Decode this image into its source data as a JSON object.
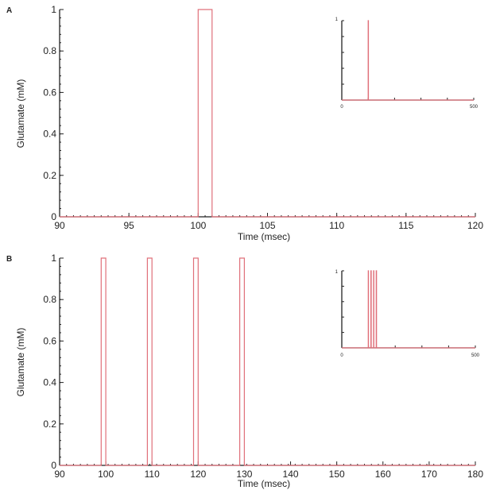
{
  "figure": {
    "panels": [
      {
        "label": "A",
        "xlabel": "Time (msec)",
        "ylabel": "Glutamate (mM)",
        "inset": {
          "x_ticks": [
            "0",
            "500"
          ],
          "y_ticks": [
            "1"
          ]
        }
      },
      {
        "label": "B",
        "xlabel": "Time (msec)",
        "ylabel": "Glutamate (mM)",
        "inset": {
          "x_ticks": [
            "0",
            "500"
          ],
          "y_ticks": [
            "1"
          ]
        }
      }
    ]
  },
  "chart_data": [
    {
      "type": "line",
      "panel": "A",
      "title": "",
      "xlabel": "Time (msec)",
      "ylabel": "Glutamate (mM)",
      "xlim": [
        90,
        120
      ],
      "ylim": [
        0,
        1
      ],
      "x_ticks": [
        90,
        95,
        100,
        105,
        110,
        115,
        120
      ],
      "y_ticks": [
        0,
        0.2,
        0.4,
        0.6,
        0.8,
        1
      ],
      "y_tick_labels": [
        "0",
        "0.2",
        "0.4",
        "0.6",
        "0.8",
        "1"
      ],
      "series": [
        {
          "x": [
            90,
            100,
            100,
            101,
            101,
            120
          ],
          "y": [
            0,
            0,
            1,
            1,
            0,
            0
          ],
          "color": "#e0707a"
        }
      ],
      "inset": {
        "xlim": [
          0,
          500
        ],
        "ylim": [
          0,
          1
        ],
        "series": [
          {
            "x": [
              0,
              100,
              100,
              101,
              101,
              500
            ],
            "y": [
              0,
              0,
              1,
              1,
              0,
              0
            ],
            "color": "#e0707a"
          }
        ]
      }
    },
    {
      "type": "line",
      "panel": "B",
      "title": "",
      "xlabel": "Time (msec)",
      "ylabel": "Glutamate (mM)",
      "xlim": [
        90,
        180
      ],
      "ylim": [
        0,
        1
      ],
      "x_ticks": [
        90,
        100,
        110,
        120,
        130,
        140,
        150,
        160,
        170,
        180
      ],
      "y_ticks": [
        0,
        0.2,
        0.4,
        0.6,
        0.8,
        1
      ],
      "y_tick_labels": [
        "0",
        "0.2",
        "0.4",
        "0.6",
        "0.8",
        "1"
      ],
      "series": [
        {
          "x": [
            90,
            99,
            99,
            100,
            100,
            109,
            109,
            110,
            110,
            119,
            119,
            120,
            120,
            129,
            129,
            130,
            130,
            180
          ],
          "y": [
            0,
            0,
            1,
            1,
            0,
            0,
            1,
            1,
            0,
            0,
            1,
            1,
            0,
            0,
            1,
            1,
            0,
            0
          ],
          "color": "#e0707a"
        }
      ],
      "inset": {
        "xlim": [
          0,
          500
        ],
        "ylim": [
          0,
          1
        ],
        "series": [
          {
            "x": [
              0,
              99,
              99,
              100,
              100,
              109,
              109,
              110,
              110,
              119,
              119,
              120,
              120,
              129,
              129,
              130,
              130,
              500
            ],
            "y": [
              0,
              0,
              1,
              1,
              0,
              0,
              1,
              1,
              0,
              0,
              1,
              1,
              0,
              0,
              1,
              1,
              0,
              0
            ],
            "color": "#e0707a"
          }
        ]
      }
    }
  ]
}
